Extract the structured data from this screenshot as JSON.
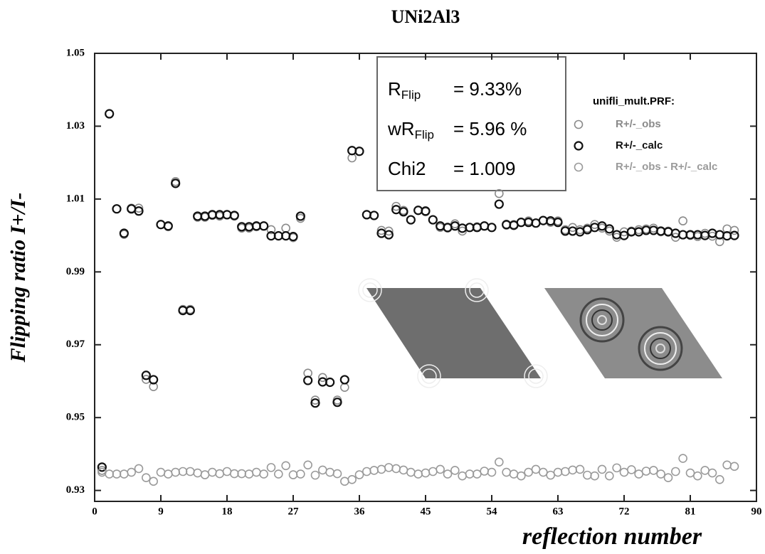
{
  "chart_data": {
    "type": "scatter",
    "title": "UNi2Al3",
    "x_label": "reflection number",
    "y_label": "Flipping ratio I+/I-",
    "xlim": [
      0,
      90
    ],
    "xticks": [
      0,
      9,
      18,
      27,
      36,
      45,
      54,
      63,
      72,
      81,
      90
    ],
    "ylim": [
      0.927,
      1.05
    ],
    "yticks": [
      0.93,
      0.95,
      0.97,
      0.99,
      1.01,
      1.03,
      1.05
    ],
    "legend_title": "unifli_mult.PRF:",
    "legend": "upper right",
    "annotations": [
      {
        "label": "R",
        "subscript": "Flip",
        "value": "=  9.33%"
      },
      {
        "label": "wR",
        "subscript": "Flip",
        "value": "= 5.96 %"
      },
      {
        "label": "Chi2",
        "value": "=  1.009"
      }
    ],
    "x": [
      1,
      2,
      3,
      4,
      5,
      6,
      7,
      8,
      9,
      10,
      11,
      12,
      13,
      14,
      15,
      16,
      17,
      18,
      19,
      20,
      21,
      22,
      23,
      24,
      25,
      26,
      27,
      28,
      29,
      30,
      31,
      32,
      33,
      34,
      35,
      36,
      37,
      38,
      39,
      40,
      41,
      42,
      43,
      44,
      45,
      46,
      47,
      48,
      49,
      50,
      51,
      52,
      53,
      54,
      55,
      56,
      57,
      58,
      59,
      60,
      61,
      62,
      63,
      64,
      65,
      66,
      67,
      68,
      69,
      70,
      71,
      72,
      73,
      74,
      75,
      76,
      77,
      78,
      79,
      80,
      81,
      82,
      83,
      84,
      85,
      86,
      87
    ],
    "series": [
      {
        "name": "R+/-_obs",
        "color": "#8a8a8a",
        "values": [
          0.9355,
          1.0334,
          1.0073,
          1.0003,
          1.0075,
          1.0075,
          0.9605,
          0.9585,
          1.003,
          1.0024,
          1.0148,
          0.9797,
          0.9797,
          1.005,
          1.005,
          1.0055,
          1.0053,
          1.0057,
          1.0053,
          1.002,
          1.002,
          1.0024,
          1.0026,
          1.0016,
          0.9999,
          1.002,
          0.9994,
          1.0047,
          0.9622,
          0.9548,
          0.961,
          0.9597,
          0.9548,
          0.9583,
          1.0213,
          1.0231,
          1.0057,
          1.0055,
          1.0014,
          1.0012,
          1.008,
          1.0069,
          1.0043,
          1.0069,
          1.0065,
          1.0043,
          1.0022,
          1.002,
          1.0032,
          1.0012,
          1.0022,
          1.0024,
          1.0026,
          1.0022,
          1.0115,
          1.0028,
          1.003,
          1.0036,
          1.004,
          1.0034,
          1.0041,
          1.0036,
          1.004,
          1.0016,
          1.0022,
          1.0016,
          1.002,
          1.003,
          1.002,
          1.0012,
          0.9995,
          1.001,
          1.0012,
          1.0016,
          1.0018,
          1.002,
          1.001,
          1.0012,
          0.9995,
          1.004,
          1.0,
          0.9997,
          1.0006,
          0.9998,
          0.9983,
          1.0018,
          1.0014
        ]
      },
      {
        "name": "R+/-_calc",
        "color": "#111111",
        "values": [
          0.9364,
          1.0334,
          1.0073,
          1.0006,
          1.0073,
          1.0067,
          0.9616,
          0.9604,
          1.003,
          1.0026,
          1.0143,
          0.9794,
          0.9794,
          1.0053,
          1.0053,
          1.0057,
          1.0057,
          1.0057,
          1.0055,
          1.0024,
          1.0024,
          1.0026,
          1.0026,
          0.9999,
          0.9999,
          0.9999,
          0.9997,
          1.0053,
          0.9602,
          0.954,
          0.9598,
          0.9597,
          0.9542,
          0.9604,
          1.0233,
          1.0231,
          1.0057,
          1.0055,
          1.0006,
          1.0002,
          1.0071,
          1.0065,
          1.0043,
          1.0069,
          1.0067,
          1.0043,
          1.0026,
          1.0022,
          1.0026,
          1.002,
          1.0022,
          1.0022,
          1.0026,
          1.0022,
          1.0086,
          1.003,
          1.0028,
          1.0036,
          1.0036,
          1.0034,
          1.0041,
          1.004,
          1.0036,
          1.0012,
          1.0012,
          1.001,
          1.0016,
          1.0022,
          1.0026,
          1.0018,
          1.0002,
          1.0,
          1.001,
          1.001,
          1.0014,
          1.0014,
          1.0012,
          1.001,
          1.0006,
          1.0002,
          1.0002,
          1.0002,
          1.0,
          1.0006,
          1.0002,
          0.9999,
          1.0
        ]
      },
      {
        "name": "R+/-_obs - R+/-_calc",
        "color": "#9a9a9a",
        "values": [
          0.935,
          0.9345,
          0.9345,
          0.9345,
          0.935,
          0.936,
          0.9335,
          0.9325,
          0.935,
          0.9345,
          0.935,
          0.9352,
          0.9352,
          0.9348,
          0.9343,
          0.935,
          0.9346,
          0.9352,
          0.9346,
          0.9346,
          0.9345,
          0.935,
          0.9345,
          0.9363,
          0.9345,
          0.9368,
          0.9343,
          0.9345,
          0.937,
          0.9342,
          0.9356,
          0.935,
          0.9346,
          0.9325,
          0.933,
          0.9343,
          0.9352,
          0.9355,
          0.9358,
          0.9363,
          0.936,
          0.9356,
          0.935,
          0.9345,
          0.9348,
          0.9352,
          0.9358,
          0.9345,
          0.9355,
          0.934,
          0.9345,
          0.9345,
          0.9353,
          0.935,
          0.9378,
          0.935,
          0.9345,
          0.934,
          0.935,
          0.9358,
          0.935,
          0.9342,
          0.935,
          0.9352,
          0.9356,
          0.9358,
          0.9342,
          0.934,
          0.9358,
          0.934,
          0.9362,
          0.935,
          0.9357,
          0.9345,
          0.9353,
          0.9355,
          0.9345,
          0.9335,
          0.9352,
          0.9388,
          0.9348,
          0.934,
          0.9355,
          0.9348,
          0.933,
          0.937,
          0.9366
        ]
      }
    ]
  }
}
